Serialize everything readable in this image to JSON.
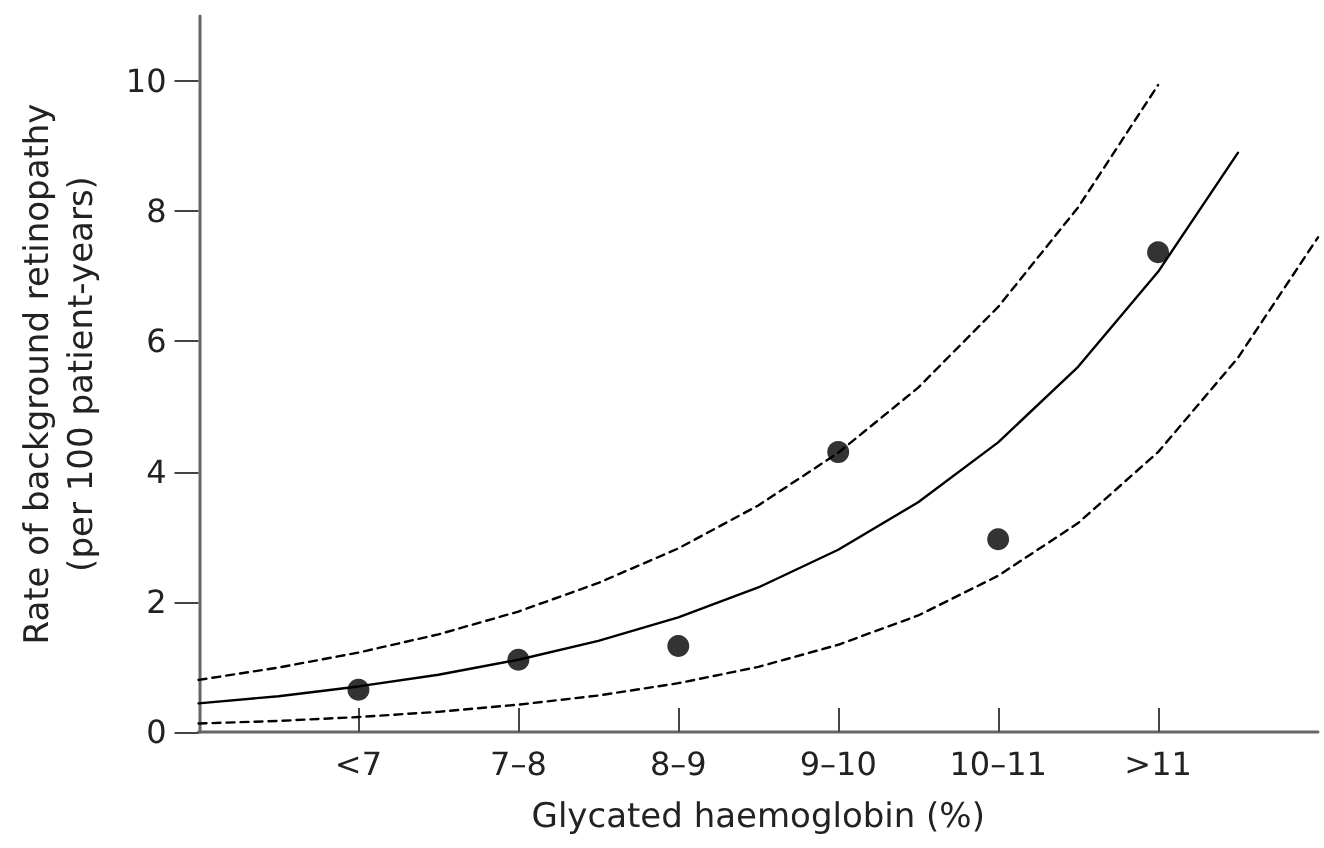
{
  "chart_data": {
    "type": "scatter",
    "xlabel": "Glycated haemoglobin (%)",
    "ylabel": "Rate of background retinopathy\n(per 100 patient-years)",
    "categories": [
      null,
      null,
      "<7",
      null,
      "7–8",
      null,
      "8–9",
      null,
      "9–10",
      null,
      "10–11",
      null,
      ">11",
      null,
      null
    ],
    "ylim": [
      0,
      11
    ],
    "yticks": [
      0,
      2,
      4,
      6,
      8,
      10
    ],
    "grid": false,
    "series": [
      {
        "color": "#000000",
        "marker": "circle",
        "values": [
          null,
          null,
          0.65,
          null,
          1.11,
          null,
          1.32,
          null,
          4.3,
          null,
          2.96,
          null,
          7.37,
          null,
          null
        ]
      },
      {
        "type": "line",
        "color": "#000000",
        "marker": "none",
        "line_style": "solid",
        "values": [
          0.44,
          0.55,
          0.7,
          0.88,
          1.11,
          1.4,
          1.76,
          2.22,
          2.8,
          3.53,
          4.45,
          5.61,
          7.07,
          8.9,
          null
        ]
      },
      {
        "type": "line",
        "color": "#000000",
        "marker": "none",
        "line_style": "dashed",
        "values": [
          0.8,
          0.99,
          1.22,
          1.5,
          1.85,
          2.29,
          2.82,
          3.48,
          4.29,
          5.29,
          6.53,
          8.06,
          9.94,
          null,
          null
        ]
      },
      {
        "type": "line",
        "color": "#000000",
        "marker": "none",
        "line_style": "dashed",
        "values": [
          0.13,
          0.17,
          0.23,
          0.31,
          0.42,
          0.56,
          0.75,
          1.0,
          1.34,
          1.79,
          2.4,
          3.21,
          4.3,
          5.75,
          7.6
        ]
      }
    ]
  }
}
